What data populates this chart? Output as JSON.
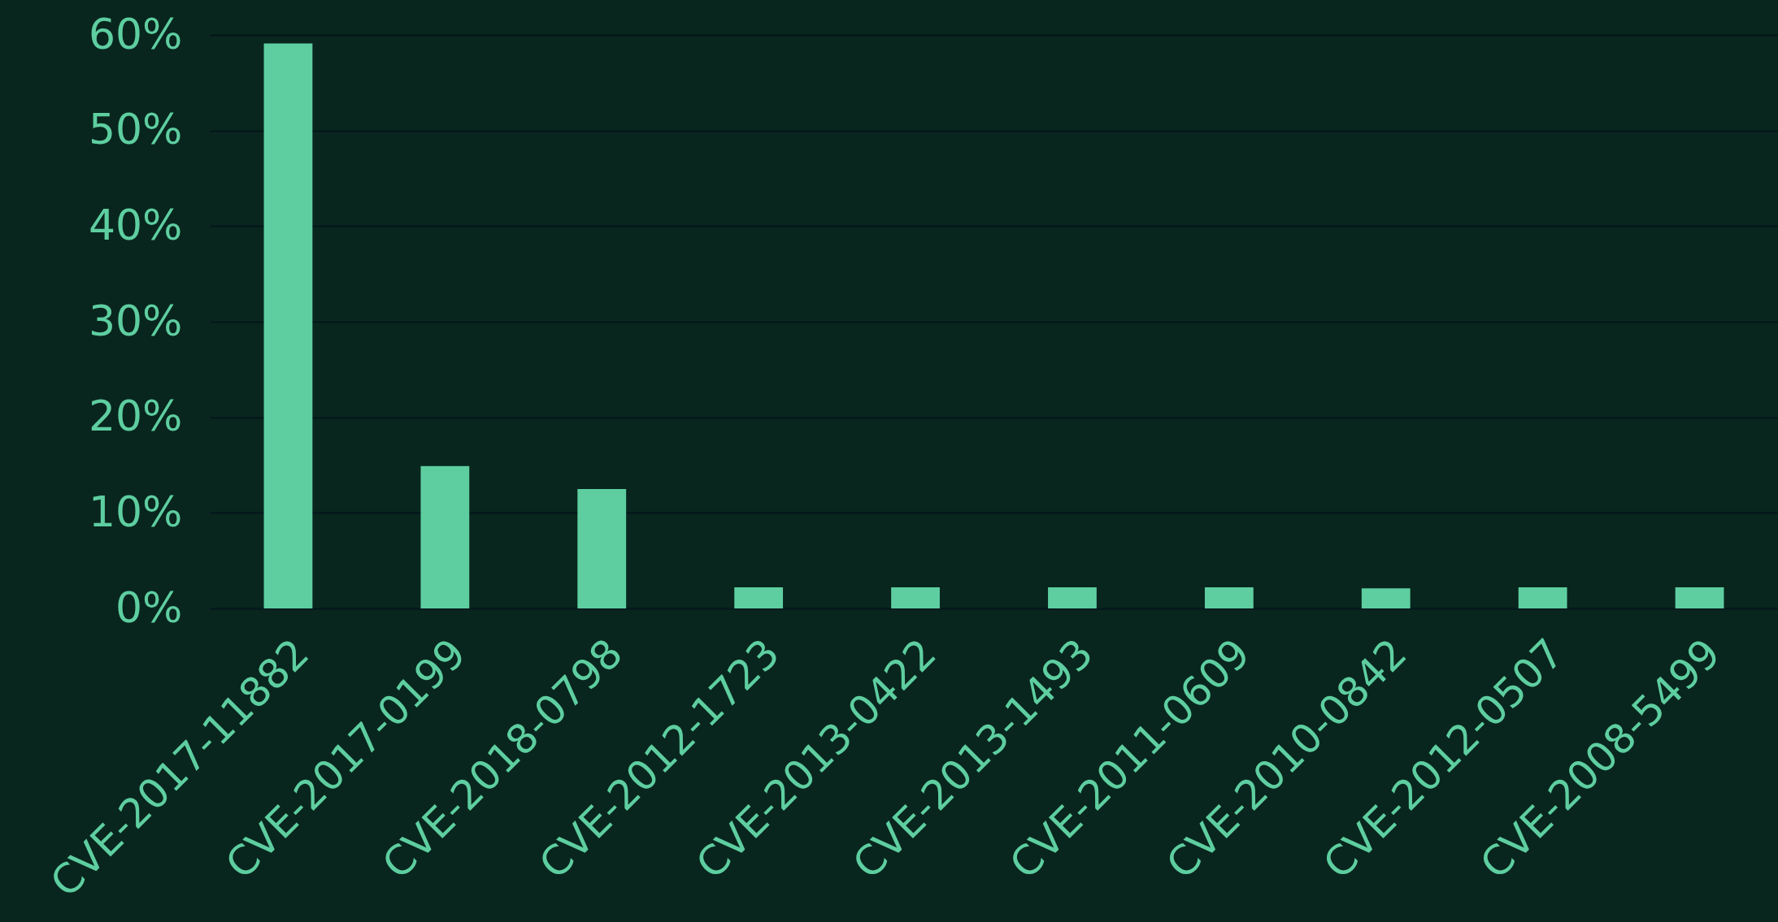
{
  "chart_data": {
    "type": "bar",
    "categories": [
      "CVE-2017-11882",
      "CVE-2017-0199",
      "CVE-2018-0798",
      "CVE-2012-1723",
      "CVE-2013-0422",
      "CVE-2013-1493",
      "CVE-2011-0609",
      "CVE-2010-0842",
      "CVE-2012-0507",
      "CVE-2008-5499"
    ],
    "values": [
      59.1,
      14.9,
      12.5,
      2.2,
      2.2,
      2.2,
      2.2,
      2.1,
      2.2,
      2.2
    ],
    "color": "#5ecea0",
    "ylim": [
      0,
      60
    ],
    "yticks": [
      {
        "value": 0,
        "label": "0%"
      },
      {
        "value": 10,
        "label": "10%"
      },
      {
        "value": 20,
        "label": "20%"
      },
      {
        "value": 30,
        "label": "30%"
      },
      {
        "value": 40,
        "label": "40%"
      },
      {
        "value": 50,
        "label": "50%"
      },
      {
        "value": 60,
        "label": "60%"
      }
    ],
    "grid": "y"
  }
}
